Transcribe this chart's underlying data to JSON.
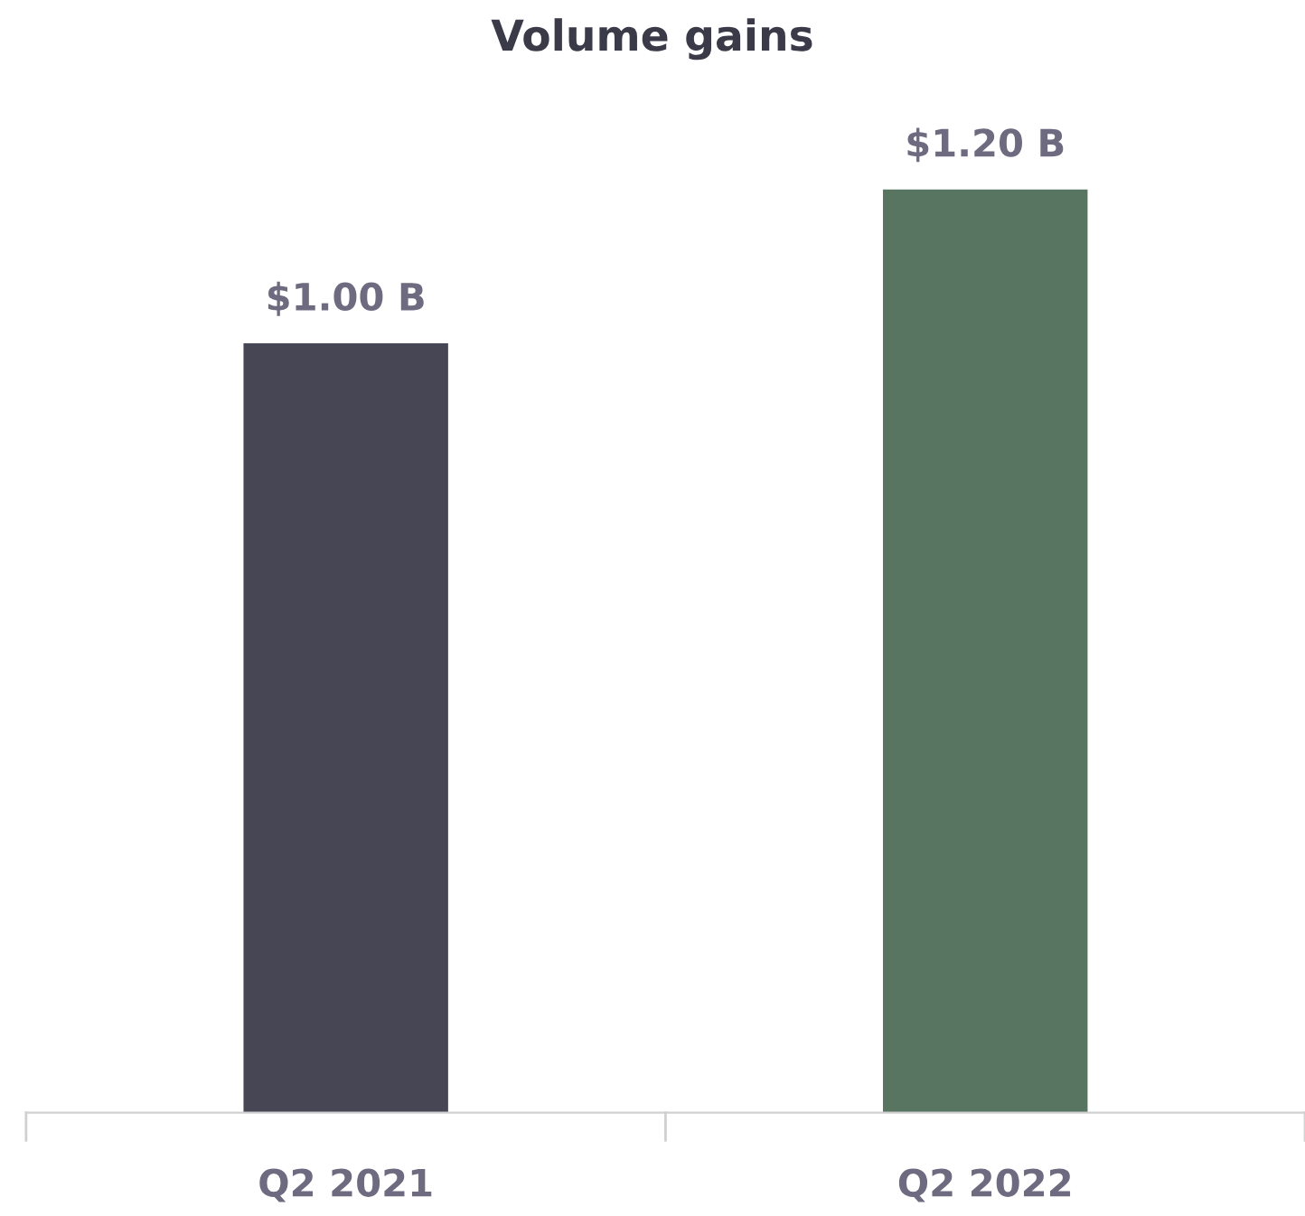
{
  "chart_data": {
    "type": "bar",
    "title": "Volume gains",
    "categories": [
      "Q2 2021",
      "Q2 2022"
    ],
    "values": [
      1.0,
      1.2
    ],
    "colors": [
      "#474654",
      "#587562"
    ],
    "value_labels": [
      "$1.00 B",
      "$1.20 B"
    ],
    "grid": false,
    "legend": false
  }
}
